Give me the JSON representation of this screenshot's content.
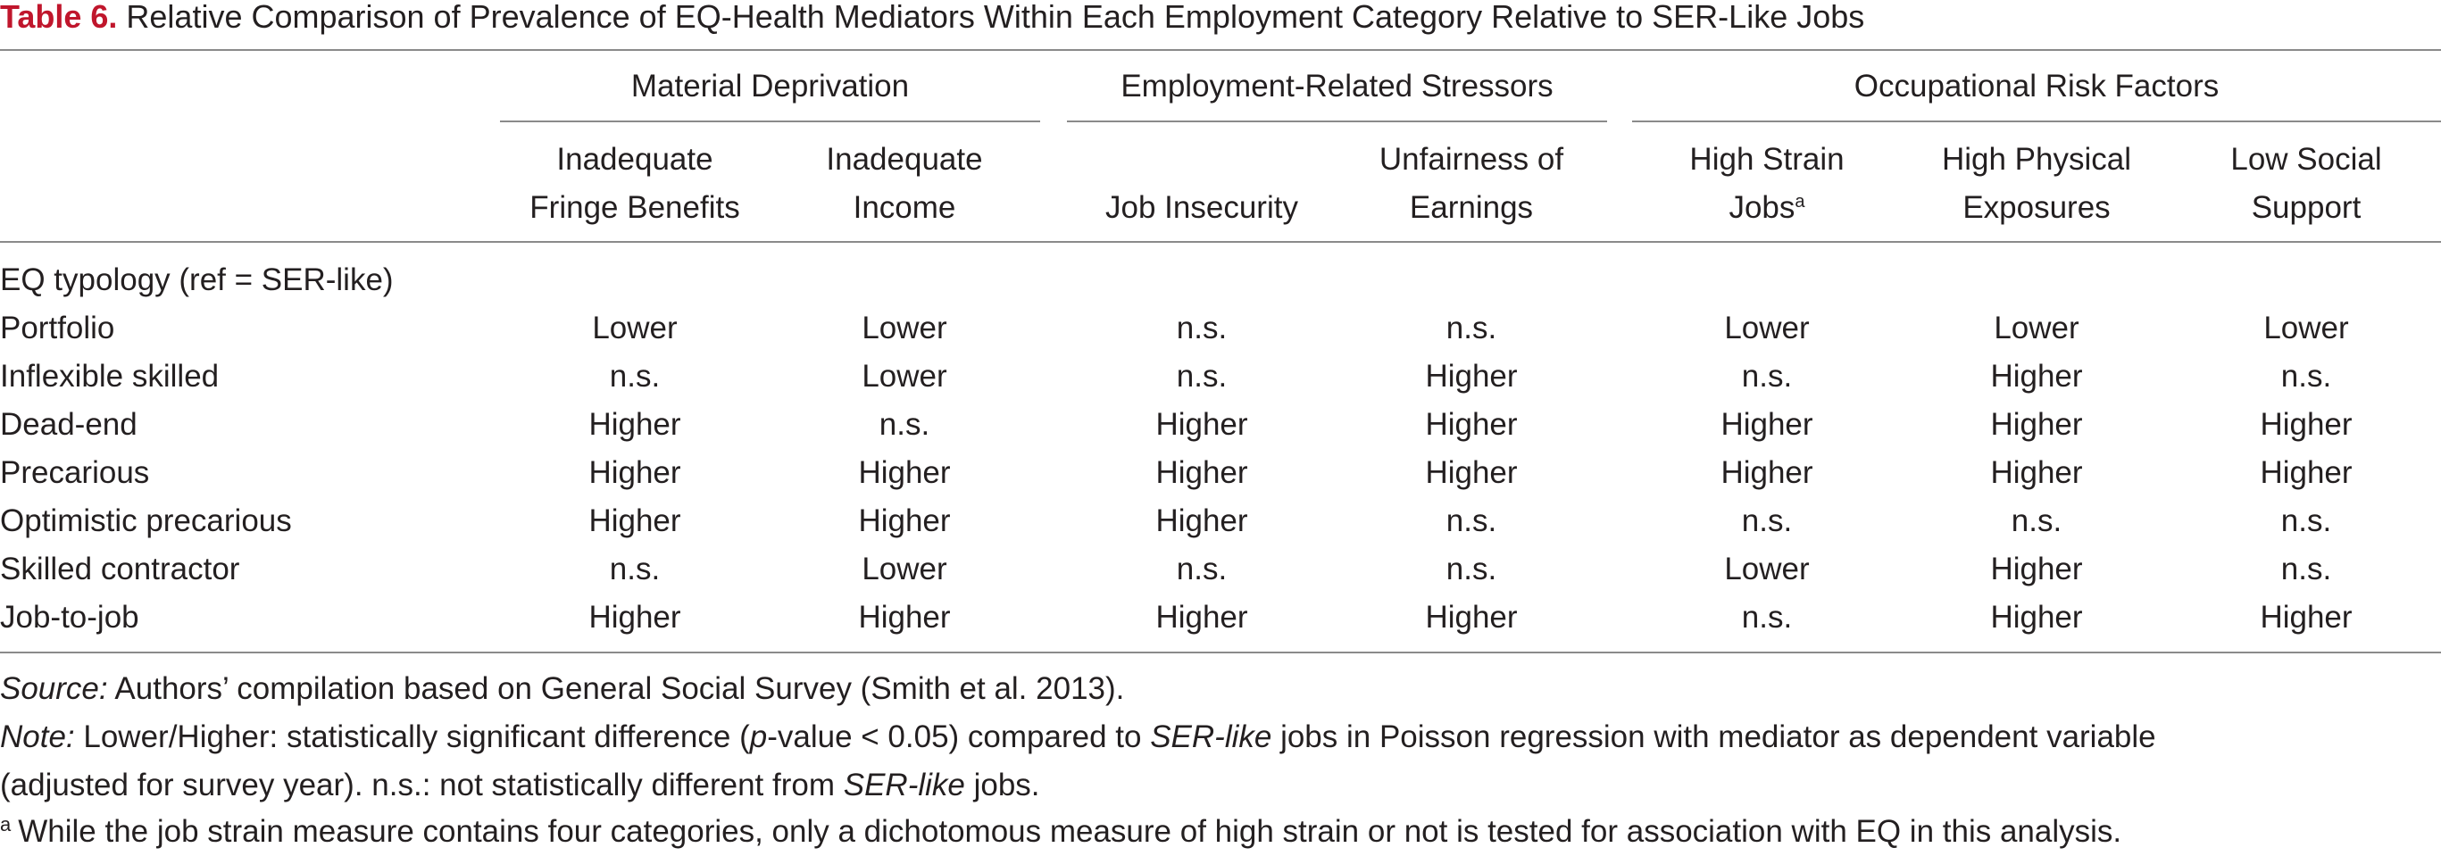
{
  "table": {
    "label": "Table 6.",
    "title": "Relative Comparison of Prevalence of EQ-Health Mediators Within Each Employment Category Relative to SER-Like Jobs",
    "groups": [
      {
        "label": "Material Deprivation"
      },
      {
        "label": "Employment-Related Stressors"
      },
      {
        "label": "Occupational Risk Factors"
      }
    ],
    "columns": [
      {
        "line1": "Inadequate",
        "line2": "Fringe Benefits",
        "sup": ""
      },
      {
        "line1": "Inadequate",
        "line2": "Income",
        "sup": ""
      },
      {
        "line1": "",
        "line2": "Job Insecurity",
        "sup": ""
      },
      {
        "line1": "Unfairness of",
        "line2": "Earnings",
        "sup": ""
      },
      {
        "line1": "High Strain",
        "line2": "Jobs",
        "sup": "a"
      },
      {
        "line1": "High Physical",
        "line2": "Exposures",
        "sup": ""
      },
      {
        "line1": "Low Social",
        "line2": "Support",
        "sup": ""
      }
    ],
    "section_label": "EQ typology (ref = SER-like)",
    "rows": [
      {
        "label": "Portfolio",
        "values": [
          "Lower",
          "Lower",
          "n.s.",
          "n.s.",
          "Lower",
          "Lower",
          "Lower"
        ]
      },
      {
        "label": "Inflexible skilled",
        "values": [
          "n.s.",
          "Lower",
          "n.s.",
          "Higher",
          "n.s.",
          "Higher",
          "n.s."
        ]
      },
      {
        "label": "Dead-end",
        "values": [
          "Higher",
          "n.s.",
          "Higher",
          "Higher",
          "Higher",
          "Higher",
          "Higher"
        ]
      },
      {
        "label": "Precarious",
        "values": [
          "Higher",
          "Higher",
          "Higher",
          "Higher",
          "Higher",
          "Higher",
          "Higher"
        ]
      },
      {
        "label": "Optimistic precarious",
        "values": [
          "Higher",
          "Higher",
          "Higher",
          "n.s.",
          "n.s.",
          "n.s.",
          "n.s."
        ]
      },
      {
        "label": "Skilled contractor",
        "values": [
          "n.s.",
          "Lower",
          "n.s.",
          "n.s.",
          "Lower",
          "Higher",
          "n.s."
        ]
      },
      {
        "label": "Job-to-job",
        "values": [
          "Higher",
          "Higher",
          "Higher",
          "Higher",
          "n.s.",
          "Higher",
          "Higher"
        ]
      }
    ]
  },
  "footnotes": {
    "source_label": "Source:",
    "source_text": " Authors’ compilation based on General Social Survey (Smith et al. 2013).",
    "note_label": "Note:",
    "note_line1_a": " Lower/Higher: statistically significant difference (",
    "note_line1_p": "p",
    "note_line1_b": "-value < 0.05) compared to ",
    "note_line1_ser": "SER-like",
    "note_line1_c": " jobs in Poisson regression with mediator as dependent variable",
    "note_line2_a": "(adjusted for survey year). n.s.: not statistically different from ",
    "note_line2_ser": "SER-like",
    "note_line2_b": " jobs.",
    "footnote_mark": "a",
    "footnote_text": "While the job strain measure contains four categories, only a dichotomous measure of high strain or not is tested for association with EQ in this analysis."
  }
}
